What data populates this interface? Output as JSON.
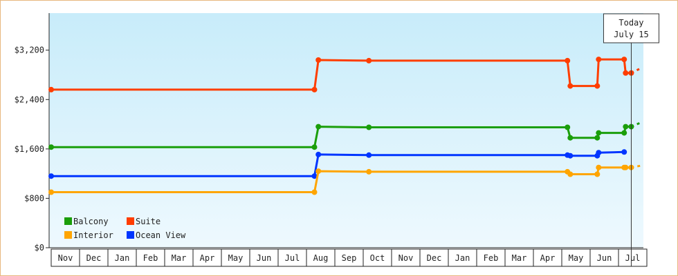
{
  "chart_data": {
    "type": "line",
    "step": true,
    "title": "",
    "xlabel": "",
    "ylabel": "",
    "ylim": [
      0,
      3800
    ],
    "yticks": [
      {
        "value": 0,
        "label": "$0"
      },
      {
        "value": 800,
        "label": "$800"
      },
      {
        "value": 1600,
        "label": "$1,600"
      },
      {
        "value": 2400,
        "label": "$2,400"
      },
      {
        "value": 3200,
        "label": "$3,200"
      }
    ],
    "months": [
      "Nov",
      "Dec",
      "Jan",
      "Feb",
      "Mar",
      "Apr",
      "May",
      "Jun",
      "Jul",
      "Aug",
      "Sep",
      "Oct",
      "Nov",
      "Dec",
      "Jan",
      "Feb",
      "Mar",
      "Apr",
      "May",
      "Jun",
      "Jul"
    ],
    "today": {
      "line1": "Today",
      "line2": "July 15",
      "at": 20.45
    },
    "background": {
      "top": "#c8ecfa",
      "bottom": "#eef9fe"
    },
    "legend": {
      "placement": "bottom-left"
    },
    "series": [
      {
        "name": "Suite",
        "color": "#ff3d00",
        "points": [
          [
            0,
            2560
          ],
          [
            9.28,
            2560
          ],
          [
            9.42,
            3040
          ],
          [
            11.2,
            3030
          ],
          [
            18.2,
            3030
          ],
          [
            18.3,
            2620
          ],
          [
            19.25,
            2620
          ],
          [
            19.3,
            3050
          ],
          [
            20.2,
            3050
          ],
          [
            20.25,
            2830
          ],
          [
            20.45,
            2830
          ]
        ],
        "forecast": [
          [
            20.45,
            2830
          ],
          [
            20.8,
            2910
          ]
        ]
      },
      {
        "name": "Balcony",
        "color": "#1a9e0a",
        "points": [
          [
            0,
            1630
          ],
          [
            9.28,
            1630
          ],
          [
            9.42,
            1960
          ],
          [
            11.2,
            1950
          ],
          [
            18.2,
            1950
          ],
          [
            18.3,
            1780
          ],
          [
            19.25,
            1780
          ],
          [
            19.3,
            1860
          ],
          [
            20.2,
            1860
          ],
          [
            20.25,
            1960
          ],
          [
            20.45,
            1960
          ]
        ],
        "forecast": [
          [
            20.45,
            1960
          ],
          [
            20.8,
            2030
          ]
        ]
      },
      {
        "name": "Ocean View",
        "color": "#0035ff",
        "points": [
          [
            0,
            1160
          ],
          [
            9.28,
            1160
          ],
          [
            9.42,
            1510
          ],
          [
            11.2,
            1500
          ],
          [
            18.2,
            1500
          ],
          [
            18.3,
            1490
          ],
          [
            19.25,
            1490
          ],
          [
            19.3,
            1540
          ],
          [
            20.2,
            1550
          ]
        ],
        "forecast": []
      },
      {
        "name": "Interior",
        "color": "#ffa500",
        "points": [
          [
            0,
            900
          ],
          [
            9.28,
            900
          ],
          [
            9.42,
            1240
          ],
          [
            11.2,
            1230
          ],
          [
            18.2,
            1230
          ],
          [
            18.3,
            1190
          ],
          [
            19.25,
            1190
          ],
          [
            19.3,
            1300
          ],
          [
            20.2,
            1300
          ],
          [
            20.25,
            1300
          ],
          [
            20.45,
            1300
          ]
        ],
        "forecast": [
          [
            20.45,
            1300
          ],
          [
            20.8,
            1330
          ]
        ]
      }
    ],
    "legend_order": [
      [
        "Balcony",
        "Suite"
      ],
      [
        "Interior",
        "Ocean View"
      ]
    ]
  }
}
